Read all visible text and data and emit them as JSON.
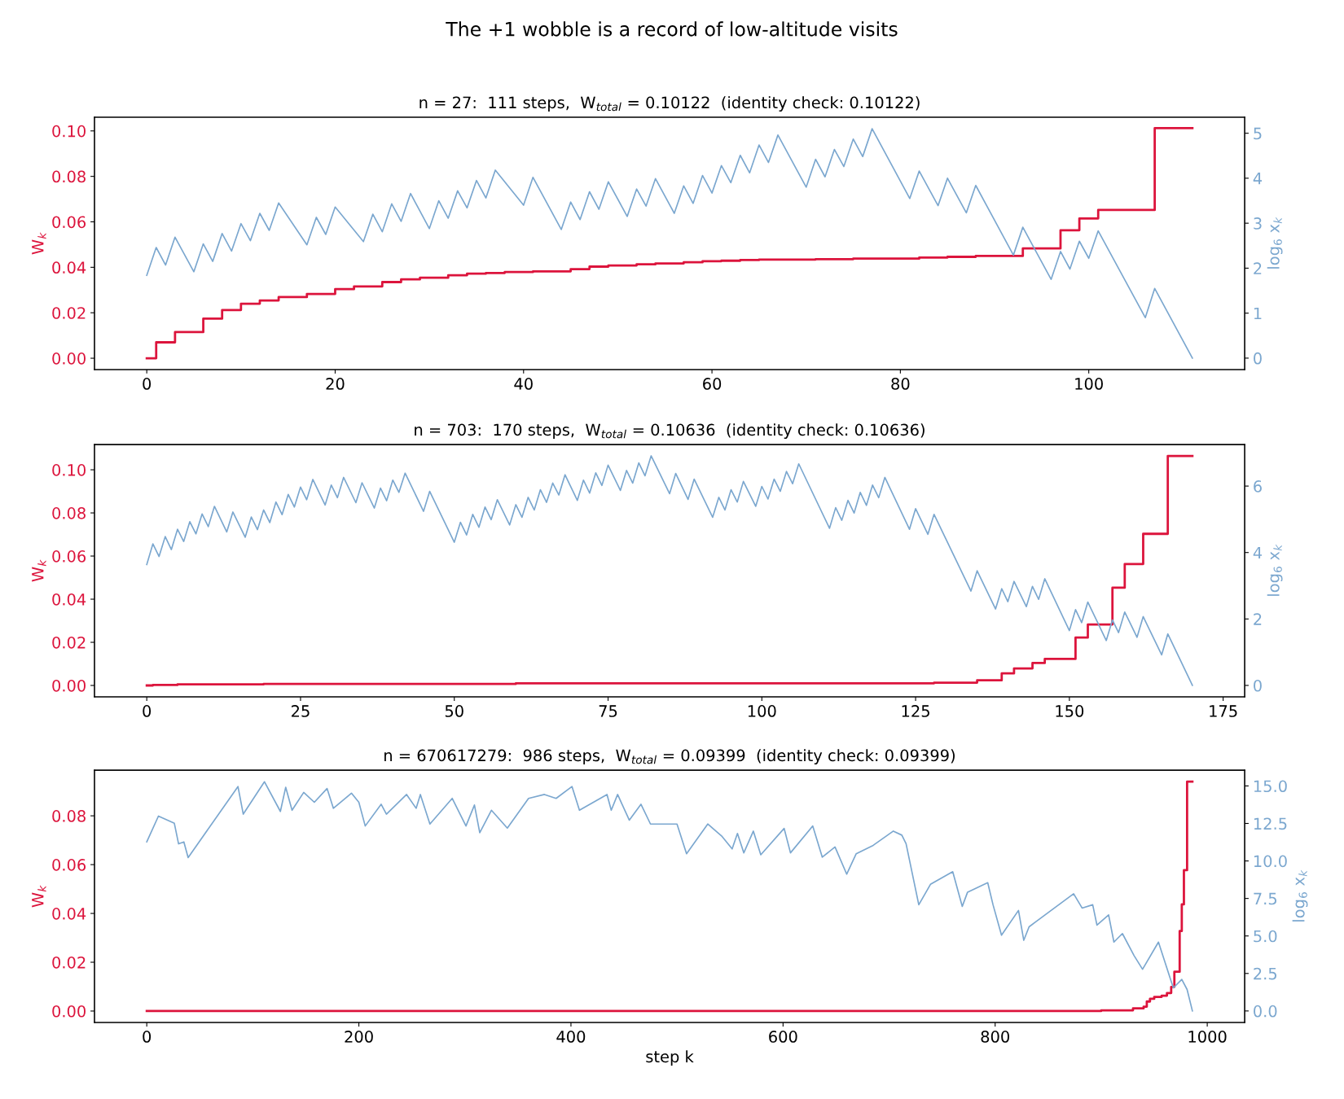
{
  "chart_data": [
    {
      "type": "step",
      "title": "The +1 wobble is a record of low-altitude visits",
      "subtitle": "n = 27:  111 steps,  W$_{total}$ = 0.10122  (identity check: 0.10122)",
      "ylabel": "W$_{k}$",
      "y2label": "log$_{6}$ x$_{k}$",
      "xlim": [
        -5.55,
        116.55
      ],
      "xticks": [
        0,
        20,
        40,
        60,
        80,
        100
      ],
      "ylim": [
        -0.005,
        0.106
      ],
      "yticks": [
        {
          "value": 0,
          "label": "0.00"
        },
        {
          "value": 0.02,
          "label": "0.02"
        },
        {
          "value": 0.04,
          "label": "0.04"
        },
        {
          "value": 0.06,
          "label": "0.06"
        },
        {
          "value": 0.08,
          "label": "0.08"
        },
        {
          "value": 0.1,
          "label": "0.10"
        }
      ],
      "y2lim": [
        -0.255,
        5.355
      ],
      "y2ticks": [
        0,
        1,
        2,
        3,
        4,
        5
      ],
      "series": [
        {
          "type": "line",
          "axis": "y2",
          "color": "#7ba7cf",
          "x": [
            0,
            1,
            2,
            3,
            5,
            6,
            7,
            8,
            9,
            10,
            11,
            12,
            13,
            14,
            17,
            18,
            19,
            20,
            23,
            24,
            25,
            26,
            27,
            28,
            30,
            31,
            32,
            33,
            34,
            35,
            36,
            37,
            40,
            41,
            44,
            45,
            46,
            47,
            48,
            49,
            51,
            52,
            53,
            54,
            56,
            57,
            58,
            59,
            60,
            61,
            62,
            63,
            64,
            65,
            66,
            67,
            70,
            71,
            72,
            73,
            74,
            75,
            76,
            77,
            81,
            82,
            84,
            85,
            87,
            88,
            92,
            93,
            96,
            97,
            98,
            99,
            100,
            101,
            106,
            107,
            111
          ],
          "values": [
            1.84,
            2.46,
            2.07,
            2.69,
            1.92,
            2.54,
            2.15,
            2.77,
            2.38,
            2.99,
            2.61,
            3.22,
            2.84,
            3.45,
            2.52,
            3.13,
            2.75,
            3.36,
            2.59,
            3.2,
            2.81,
            3.43,
            3.04,
            3.66,
            2.88,
            3.5,
            3.11,
            3.72,
            3.34,
            3.95,
            3.56,
            4.18,
            3.4,
            4.02,
            2.86,
            3.47,
            3.08,
            3.7,
            3.31,
            3.92,
            3.15,
            3.76,
            3.38,
            3.99,
            3.22,
            3.83,
            3.44,
            4.06,
            3.67,
            4.28,
            3.9,
            4.51,
            4.12,
            4.74,
            4.35,
            4.96,
            3.8,
            4.42,
            4.03,
            4.64,
            4.26,
            4.87,
            4.48,
            5.1,
            3.55,
            4.16,
            3.39,
            4.0,
            3.23,
            3.84,
            2.29,
            2.91,
            1.75,
            2.37,
            1.98,
            2.6,
            2.22,
            2.83,
            0.9,
            1.55,
            0
          ]
        },
        {
          "color": "#dc143c",
          "x": [
            0,
            1,
            3,
            6,
            8,
            10,
            12,
            14,
            17,
            20,
            22,
            25,
            27,
            29,
            32,
            34,
            36,
            38,
            41,
            45,
            47,
            49,
            52,
            54,
            57,
            59,
            61,
            63,
            65,
            71,
            75,
            82,
            85,
            88,
            93,
            97,
            99,
            101,
            107,
            111
          ],
          "values": [
            0,
            0.007,
            0.0115,
            0.0174,
            0.0212,
            0.024,
            0.0254,
            0.0269,
            0.0283,
            0.0304,
            0.0316,
            0.0335,
            0.0347,
            0.0354,
            0.0365,
            0.0372,
            0.0375,
            0.0379,
            0.0382,
            0.0392,
            0.0403,
            0.0408,
            0.0413,
            0.0417,
            0.0422,
            0.0427,
            0.0429,
            0.0432,
            0.0434,
            0.0436,
            0.0438,
            0.0443,
            0.0446,
            0.045,
            0.0483,
            0.0563,
            0.0615,
            0.0652,
            0.1012,
            0.1012
          ]
        }
      ]
    },
    {
      "type": "step",
      "title": "n = 703:  170 steps,  W$_{total}$ = 0.10636  (identity check: 0.10636)",
      "ylabel": "W$_{k}$",
      "y2label": "log$_{6}$ x$_{k}$",
      "xlim": [
        -8.5,
        178.5
      ],
      "xticks": [
        0,
        25,
        50,
        75,
        100,
        125,
        150,
        175
      ],
      "ylim": [
        -0.0053,
        0.1117
      ],
      "yticks": [
        {
          "value": 0,
          "label": "0.00"
        },
        {
          "value": 0.02,
          "label": "0.02"
        },
        {
          "value": 0.04,
          "label": "0.04"
        },
        {
          "value": 0.06,
          "label": "0.06"
        },
        {
          "value": 0.08,
          "label": "0.08"
        },
        {
          "value": 0.1,
          "label": "0.10"
        }
      ],
      "y2lim": [
        -0.345,
        7.25
      ],
      "y2ticks": [
        0,
        2,
        4,
        6
      ],
      "series": [
        {
          "type": "line",
          "axis": "y2",
          "color": "#7ba7cf",
          "x": [
            0,
            1,
            2,
            3,
            4,
            5,
            6,
            7,
            8,
            9,
            10,
            11,
            13,
            14,
            16,
            17,
            18,
            19,
            20,
            21,
            22,
            23,
            24,
            25,
            26,
            27,
            29,
            30,
            31,
            32,
            34,
            35,
            37,
            38,
            39,
            40,
            41,
            42,
            45,
            46,
            50,
            51,
            52,
            53,
            54,
            55,
            56,
            57,
            59,
            60,
            61,
            62,
            63,
            64,
            65,
            66,
            67,
            68,
            70,
            71,
            72,
            73,
            74,
            75,
            77,
            78,
            79,
            80,
            81,
            82,
            85,
            86,
            88,
            89,
            92,
            93,
            94,
            95,
            96,
            97,
            99,
            100,
            101,
            102,
            103,
            104,
            105,
            106,
            111,
            112,
            113,
            114,
            115,
            116,
            117,
            118,
            119,
            120,
            124,
            125,
            127,
            128,
            134,
            135,
            138,
            139,
            140,
            141,
            143,
            144,
            145,
            146,
            150,
            151,
            152,
            153,
            156,
            157,
            158,
            159,
            161,
            162,
            165,
            166,
            170
          ],
          "values": [
            3.64,
            4.26,
            3.88,
            4.48,
            4.09,
            4.7,
            4.33,
            4.93,
            4.56,
            5.16,
            4.78,
            5.39,
            4.62,
            5.22,
            4.46,
            5.07,
            4.69,
            5.28,
            4.9,
            5.52,
            5.14,
            5.75,
            5.37,
            5.97,
            5.59,
            6.2,
            5.43,
            6.03,
            5.65,
            6.26,
            5.5,
            6.1,
            5.34,
            5.94,
            5.56,
            6.18,
            5.81,
            6.39,
            5.24,
            5.84,
            4.31,
            4.91,
            4.53,
            5.15,
            4.76,
            5.37,
            4.99,
            5.59,
            4.83,
            5.44,
            5.06,
            5.66,
            5.28,
            5.89,
            5.51,
            6.09,
            5.73,
            6.34,
            5.57,
            6.18,
            5.79,
            6.4,
            6.02,
            6.63,
            5.87,
            6.47,
            6.09,
            6.7,
            6.31,
            6.91,
            5.77,
            6.38,
            5.6,
            6.21,
            5.06,
            5.66,
            5.28,
            5.89,
            5.52,
            6.14,
            5.39,
            5.99,
            5.61,
            6.21,
            5.84,
            6.44,
            6.07,
            6.67,
            4.73,
            5.35,
            4.97,
            5.57,
            5.19,
            5.81,
            5.42,
            6.03,
            5.65,
            6.26,
            4.7,
            5.32,
            4.55,
            5.15,
            2.84,
            3.45,
            2.3,
            2.91,
            2.52,
            3.13,
            2.37,
            2.98,
            2.59,
            3.21,
            1.65,
            2.28,
            1.89,
            2.51,
            1.35,
            1.97,
            1.59,
            2.21,
            1.45,
            2.07,
            0.92,
            1.55,
            0
          ]
        },
        {
          "color": "#dc143c",
          "x": [
            0,
            1,
            5,
            19,
            60,
            128,
            135,
            139,
            141,
            144,
            146,
            151,
            153,
            157,
            159,
            162,
            166,
            170
          ],
          "values": [
            0,
            0.0002,
            0.0005,
            0.0007,
            0.001,
            0.0013,
            0.0024,
            0.0056,
            0.0079,
            0.0104,
            0.0123,
            0.0222,
            0.0283,
            0.0453,
            0.0563,
            0.0703,
            0.1064,
            0.1064
          ]
        }
      ]
    },
    {
      "type": "step",
      "title": "n = 670617279:  986 steps,  W$_{total}$ = 0.09399  (identity check: 0.09399)",
      "xlabel": "step k",
      "ylabel": "W$_{k}$",
      "y2label": "log$_{6}$ x$_{k}$",
      "xlim": [
        -49.3,
        1035.3
      ],
      "xticks": [
        0,
        200,
        400,
        600,
        800,
        1000
      ],
      "ylim": [
        -0.0047,
        0.0987
      ],
      "yticks": [
        {
          "value": 0,
          "label": "0.00"
        },
        {
          "value": 0.02,
          "label": "0.02"
        },
        {
          "value": 0.04,
          "label": "0.04"
        },
        {
          "value": 0.06,
          "label": "0.06"
        },
        {
          "value": 0.08,
          "label": "0.08"
        }
      ],
      "y2lim": [
        -0.77,
        16.05
      ],
      "y2ticks": [
        {
          "value": 0,
          "label": "0.0"
        },
        {
          "value": 2.5,
          "label": "2.5"
        },
        {
          "value": 5,
          "label": "5.0"
        },
        {
          "value": 7.5,
          "label": "7.5"
        },
        {
          "value": 10,
          "label": "10.0"
        },
        {
          "value": 12.5,
          "label": "12.5"
        },
        {
          "value": 15,
          "label": "15.0"
        }
      ],
      "series": [
        {
          "type": "line",
          "axis": "y2",
          "color": "#7ba7cf",
          "x": [
            0,
            11,
            26,
            30,
            35,
            39,
            86,
            91,
            111,
            126,
            131,
            137,
            148,
            158,
            170,
            176,
            193,
            200,
            206,
            221,
            226,
            245,
            254,
            258,
            267,
            288,
            301,
            309,
            314,
            325,
            340,
            360,
            375,
            386,
            401,
            408,
            434,
            438,
            444,
            455,
            466,
            475,
            500,
            509,
            529,
            542,
            552,
            557,
            563,
            572,
            579,
            601,
            607,
            628,
            637,
            649,
            660,
            669,
            685,
            704,
            712,
            716,
            728,
            739,
            760,
            769,
            774,
            793,
            798,
            806,
            822,
            827,
            832,
            874,
            882,
            892,
            896,
            907,
            912,
            920,
            931,
            939,
            954,
            968,
            976,
            981,
            986
          ],
          "values": [
            11.27,
            12.99,
            12.51,
            11.14,
            11.27,
            10.22,
            14.96,
            13.12,
            15.28,
            13.3,
            14.91,
            13.38,
            14.57,
            13.91,
            14.83,
            13.51,
            14.52,
            13.91,
            12.33,
            13.78,
            13.12,
            14.43,
            13.51,
            14.43,
            12.46,
            14.17,
            12.33,
            13.73,
            11.88,
            13.38,
            12.19,
            14.17,
            14.43,
            14.17,
            14.96,
            13.38,
            14.43,
            13.38,
            14.43,
            12.72,
            13.78,
            12.46,
            12.46,
            10.48,
            12.46,
            11.67,
            10.8,
            11.83,
            10.54,
            11.99,
            10.41,
            12.17,
            10.54,
            12.33,
            10.25,
            10.93,
            9.12,
            10.48,
            11.04,
            11.99,
            11.72,
            11.15,
            7.08,
            8.44,
            9.28,
            6.97,
            7.92,
            8.55,
            7.08,
            5.05,
            6.7,
            4.71,
            5.61,
            7.81,
            6.86,
            7.08,
            5.72,
            6.4,
            4.59,
            5.16,
            3.69,
            2.78,
            4.59,
            1.54,
            2.1,
            1.43,
            0
          ]
        },
        {
          "color": "#dc143c",
          "x": [
            0,
            900,
            930,
            940,
            943,
            946,
            950,
            957,
            962,
            966,
            969,
            974,
            976,
            978,
            981,
            986
          ],
          "values": [
            0,
            0.0003,
            0.0011,
            0.0018,
            0.0039,
            0.005,
            0.0058,
            0.0063,
            0.0074,
            0.0099,
            0.0161,
            0.0328,
            0.0437,
            0.0577,
            0.094,
            0.094
          ]
        }
      ]
    }
  ]
}
